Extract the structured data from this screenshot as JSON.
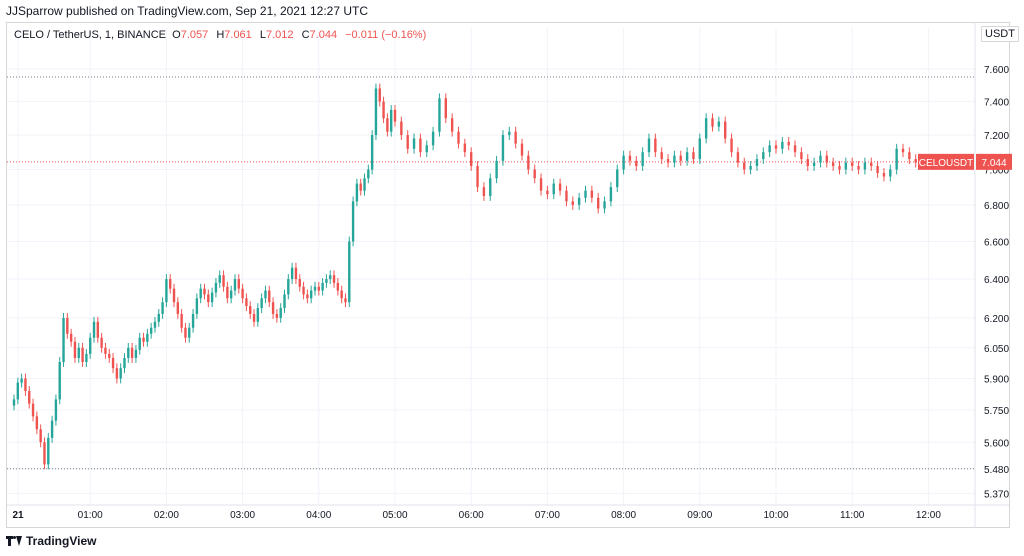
{
  "header": {
    "publish_line": "JJSparrow published on TradingView.com, Sep 21, 2021 12:27 UTC"
  },
  "legend": {
    "symbol": "CELO / TetherUS, 1, BINANCE",
    "o_label": "O",
    "o_value": "7.057",
    "h_label": "H",
    "h_value": "7.061",
    "l_label": "L",
    "l_value": "7.012",
    "c_label": "C",
    "c_value": "7.044",
    "change": "−0.011 (−0.16%)"
  },
  "price_axis": {
    "currency": "USDT"
  },
  "last_price_label": {
    "symbol": "CELOUSDT",
    "price": "7.044"
  },
  "footer": {
    "brand": "TradingView"
  },
  "colors": {
    "up": "#26a69a",
    "down": "#ef5350",
    "grid": "#f0f3fa",
    "text": "#131722"
  },
  "chart_data": {
    "type": "candlestick",
    "y_ticks": [
      "7.600",
      "7.400",
      "7.200",
      "7.000",
      "6.800",
      "6.600",
      "6.400",
      "6.200",
      "6.050",
      "5.900",
      "5.750",
      "5.600",
      "5.480",
      "5.370"
    ],
    "y_scale": "log",
    "x_ticks": [
      "21",
      "01:00",
      "02:00",
      "03:00",
      "04:00",
      "05:00",
      "06:00",
      "07:00",
      "08:00",
      "09:00",
      "10:00",
      "11:00",
      "12:00"
    ],
    "high_line": 7.55,
    "low_line": 5.48,
    "last_price": 7.044,
    "series": [
      {
        "t": "00:00",
        "close": 5.8
      },
      {
        "t": "00:03",
        "close": 5.88
      },
      {
        "t": "00:06",
        "close": 5.9
      },
      {
        "t": "00:09",
        "close": 5.84
      },
      {
        "t": "00:12",
        "close": 5.78
      },
      {
        "t": "00:15",
        "close": 5.72
      },
      {
        "t": "00:18",
        "close": 5.66
      },
      {
        "t": "00:21",
        "close": 5.6
      },
      {
        "t": "00:24",
        "close": 5.5
      },
      {
        "t": "00:27",
        "close": 5.62
      },
      {
        "t": "00:30",
        "close": 5.7
      },
      {
        "t": "00:33",
        "close": 5.8
      },
      {
        "t": "00:36",
        "close": 5.98
      },
      {
        "t": "00:39",
        "close": 6.2
      },
      {
        "t": "00:42",
        "close": 6.12
      },
      {
        "t": "00:45",
        "close": 6.08
      },
      {
        "t": "00:48",
        "close": 6.0
      },
      {
        "t": "00:51",
        "close": 6.05
      },
      {
        "t": "00:54",
        "close": 5.98
      },
      {
        "t": "00:57",
        "close": 6.02
      },
      {
        "t": "01:00",
        "close": 6.1
      },
      {
        "t": "01:03",
        "close": 6.18
      },
      {
        "t": "01:06",
        "close": 6.1
      },
      {
        "t": "01:09",
        "close": 6.05
      },
      {
        "t": "01:12",
        "close": 6.02
      },
      {
        "t": "01:15",
        "close": 6.0
      },
      {
        "t": "01:18",
        "close": 5.95
      },
      {
        "t": "01:21",
        "close": 5.9
      },
      {
        "t": "01:24",
        "close": 5.95
      },
      {
        "t": "01:27",
        "close": 6.0
      },
      {
        "t": "01:30",
        "close": 6.05
      },
      {
        "t": "01:33",
        "close": 6.0
      },
      {
        "t": "01:36",
        "close": 6.04
      },
      {
        "t": "01:39",
        "close": 6.1
      },
      {
        "t": "01:42",
        "close": 6.08
      },
      {
        "t": "01:45",
        "close": 6.12
      },
      {
        "t": "01:48",
        "close": 6.15
      },
      {
        "t": "01:51",
        "close": 6.18
      },
      {
        "t": "01:54",
        "close": 6.22
      },
      {
        "t": "01:57",
        "close": 6.28
      },
      {
        "t": "02:00",
        "close": 6.4
      },
      {
        "t": "02:03",
        "close": 6.35
      },
      {
        "t": "02:06",
        "close": 6.28
      },
      {
        "t": "02:09",
        "close": 6.22
      },
      {
        "t": "02:12",
        "close": 6.15
      },
      {
        "t": "02:15",
        "close": 6.1
      },
      {
        "t": "02:18",
        "close": 6.15
      },
      {
        "t": "02:21",
        "close": 6.22
      },
      {
        "t": "02:24",
        "close": 6.3
      },
      {
        "t": "02:27",
        "close": 6.35
      },
      {
        "t": "02:30",
        "close": 6.32
      },
      {
        "t": "02:33",
        "close": 6.28
      },
      {
        "t": "02:36",
        "close": 6.33
      },
      {
        "t": "02:39",
        "close": 6.38
      },
      {
        "t": "02:42",
        "close": 6.42
      },
      {
        "t": "02:45",
        "close": 6.36
      },
      {
        "t": "02:48",
        "close": 6.3
      },
      {
        "t": "02:51",
        "close": 6.34
      },
      {
        "t": "02:54",
        "close": 6.4
      },
      {
        "t": "02:57",
        "close": 6.35
      },
      {
        "t": "03:00",
        "close": 6.3
      },
      {
        "t": "03:03",
        "close": 6.26
      },
      {
        "t": "03:06",
        "close": 6.22
      },
      {
        "t": "03:09",
        "close": 6.18
      },
      {
        "t": "03:12",
        "close": 6.25
      },
      {
        "t": "03:15",
        "close": 6.3
      },
      {
        "t": "03:18",
        "close": 6.34
      },
      {
        "t": "03:21",
        "close": 6.28
      },
      {
        "t": "03:24",
        "close": 6.22
      },
      {
        "t": "03:27",
        "close": 6.2
      },
      {
        "t": "03:30",
        "close": 6.25
      },
      {
        "t": "03:33",
        "close": 6.32
      },
      {
        "t": "03:36",
        "close": 6.4
      },
      {
        "t": "03:39",
        "close": 6.46
      },
      {
        "t": "03:42",
        "close": 6.4
      },
      {
        "t": "03:45",
        "close": 6.36
      },
      {
        "t": "03:48",
        "close": 6.32
      },
      {
        "t": "03:51",
        "close": 6.3
      },
      {
        "t": "03:54",
        "close": 6.34
      },
      {
        "t": "03:57",
        "close": 6.36
      },
      {
        "t": "04:00",
        "close": 6.34
      },
      {
        "t": "04:03",
        "close": 6.38
      },
      {
        "t": "04:06",
        "close": 6.4
      },
      {
        "t": "04:09",
        "close": 6.42
      },
      {
        "t": "04:12",
        "close": 6.38
      },
      {
        "t": "04:15",
        "close": 6.34
      },
      {
        "t": "04:18",
        "close": 6.3
      },
      {
        "t": "04:21",
        "close": 6.28
      },
      {
        "t": "04:24",
        "close": 6.6
      },
      {
        "t": "04:27",
        "close": 6.82
      },
      {
        "t": "04:30",
        "close": 6.92
      },
      {
        "t": "04:33",
        "close": 6.88
      },
      {
        "t": "04:36",
        "close": 6.95
      },
      {
        "t": "04:39",
        "close": 7.0
      },
      {
        "t": "04:42",
        "close": 7.2
      },
      {
        "t": "04:45",
        "close": 7.48
      },
      {
        "t": "04:48",
        "close": 7.4
      },
      {
        "t": "04:51",
        "close": 7.3
      },
      {
        "t": "04:54",
        "close": 7.22
      },
      {
        "t": "04:57",
        "close": 7.35
      }
    ],
    "series2": [
      {
        "t": "05:00",
        "close": 7.28
      },
      {
        "t": "05:05",
        "close": 7.2
      },
      {
        "t": "05:10",
        "close": 7.12
      },
      {
        "t": "05:15",
        "close": 7.18
      },
      {
        "t": "05:20",
        "close": 7.1
      },
      {
        "t": "05:25",
        "close": 7.14
      },
      {
        "t": "05:30",
        "close": 7.22
      },
      {
        "t": "05:35",
        "close": 7.42
      },
      {
        "t": "05:40",
        "close": 7.3
      },
      {
        "t": "05:45",
        "close": 7.22
      },
      {
        "t": "05:50",
        "close": 7.15
      },
      {
        "t": "05:55",
        "close": 7.1
      },
      {
        "t": "06:00",
        "close": 7.02
      },
      {
        "t": "06:05",
        "close": 6.9
      },
      {
        "t": "06:10",
        "close": 6.85
      },
      {
        "t": "06:15",
        "close": 6.95
      },
      {
        "t": "06:20",
        "close": 7.05
      },
      {
        "t": "06:25",
        "close": 7.2
      },
      {
        "t": "06:30",
        "close": 7.22
      },
      {
        "t": "06:35",
        "close": 7.15
      },
      {
        "t": "06:40",
        "close": 7.08
      },
      {
        "t": "06:45",
        "close": 7.0
      },
      {
        "t": "06:50",
        "close": 6.95
      },
      {
        "t": "06:55",
        "close": 6.88
      },
      {
        "t": "07:00",
        "close": 6.86
      },
      {
        "t": "07:05",
        "close": 6.92
      },
      {
        "t": "07:10",
        "close": 6.88
      },
      {
        "t": "07:15",
        "close": 6.82
      },
      {
        "t": "07:20",
        "close": 6.8
      },
      {
        "t": "07:25",
        "close": 6.84
      },
      {
        "t": "07:30",
        "close": 6.88
      },
      {
        "t": "07:35",
        "close": 6.84
      },
      {
        "t": "07:40",
        "close": 6.78
      },
      {
        "t": "07:45",
        "close": 6.82
      },
      {
        "t": "07:50",
        "close": 6.9
      },
      {
        "t": "07:55",
        "close": 7.0
      },
      {
        "t": "08:00",
        "close": 7.08
      },
      {
        "t": "08:05",
        "close": 7.05
      },
      {
        "t": "08:10",
        "close": 7.02
      },
      {
        "t": "08:15",
        "close": 7.1
      },
      {
        "t": "08:20",
        "close": 7.18
      },
      {
        "t": "08:25",
        "close": 7.1
      },
      {
        "t": "08:30",
        "close": 7.06
      },
      {
        "t": "08:35",
        "close": 7.04
      },
      {
        "t": "08:40",
        "close": 7.08
      },
      {
        "t": "08:45",
        "close": 7.05
      },
      {
        "t": "08:50",
        "close": 7.1
      },
      {
        "t": "08:55",
        "close": 7.06
      },
      {
        "t": "09:00",
        "close": 7.18
      },
      {
        "t": "09:05",
        "close": 7.3
      },
      {
        "t": "09:10",
        "close": 7.25
      },
      {
        "t": "09:15",
        "close": 7.28
      },
      {
        "t": "09:20",
        "close": 7.18
      },
      {
        "t": "09:25",
        "close": 7.1
      },
      {
        "t": "09:30",
        "close": 7.04
      },
      {
        "t": "09:35",
        "close": 7.0
      },
      {
        "t": "09:40",
        "close": 7.02
      },
      {
        "t": "09:45",
        "close": 7.06
      },
      {
        "t": "09:50",
        "close": 7.1
      },
      {
        "t": "09:55",
        "close": 7.14
      },
      {
        "t": "10:00",
        "close": 7.12
      },
      {
        "t": "10:05",
        "close": 7.16
      },
      {
        "t": "10:10",
        "close": 7.14
      },
      {
        "t": "10:15",
        "close": 7.1
      },
      {
        "t": "10:20",
        "close": 7.06
      },
      {
        "t": "10:25",
        "close": 7.02
      },
      {
        "t": "10:30",
        "close": 7.04
      },
      {
        "t": "10:35",
        "close": 7.08
      },
      {
        "t": "10:40",
        "close": 7.04
      },
      {
        "t": "10:45",
        "close": 7.02
      },
      {
        "t": "10:50",
        "close": 7.0
      },
      {
        "t": "10:55",
        "close": 7.04
      },
      {
        "t": "11:00",
        "close": 7.02
      },
      {
        "t": "11:05",
        "close": 7.0
      },
      {
        "t": "11:10",
        "close": 7.04
      },
      {
        "t": "11:15",
        "close": 7.02
      },
      {
        "t": "11:20",
        "close": 6.98
      },
      {
        "t": "11:25",
        "close": 6.96
      },
      {
        "t": "11:30",
        "close": 7.0
      },
      {
        "t": "11:35",
        "close": 7.12
      },
      {
        "t": "11:40",
        "close": 7.1
      },
      {
        "t": "11:45",
        "close": 7.06
      },
      {
        "t": "11:50",
        "close": 7.04
      },
      {
        "t": "11:55",
        "close": 7.044
      }
    ]
  }
}
